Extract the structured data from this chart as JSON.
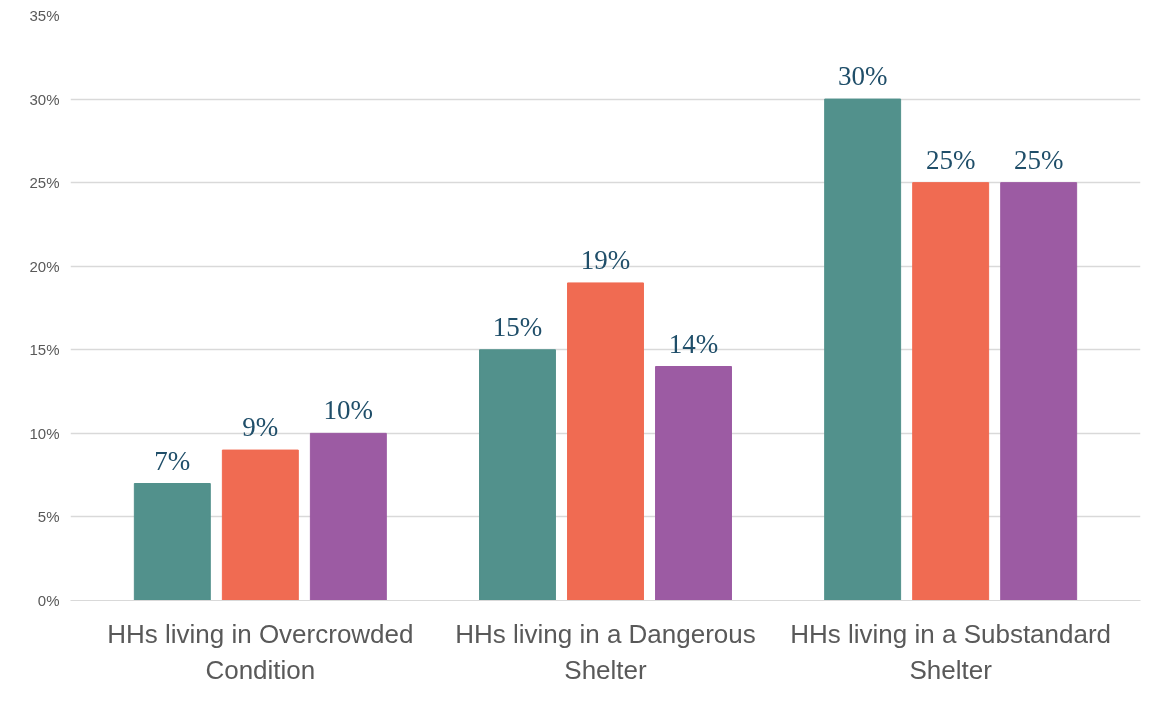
{
  "chart_data": {
    "type": "bar",
    "categories": [
      "HHs living in Overcrowded Condition",
      "HHs living in a Dangerous Shelter",
      "HHs living in a Substandard Shelter"
    ],
    "series": [
      {
        "color": "#52918c",
        "values": [
          7,
          15,
          30
        ],
        "value_labels": [
          "7%",
          "15%",
          "30%"
        ]
      },
      {
        "color": "#f06b52",
        "values": [
          9,
          19,
          25
        ],
        "value_labels": [
          "9%",
          "19%",
          "25%"
        ]
      },
      {
        "color": "#9c5ba3",
        "values": [
          10,
          14,
          25
        ],
        "value_labels": [
          "10%",
          "14%",
          "25%"
        ]
      }
    ],
    "ylim": [
      0,
      35
    ],
    "yticks": [
      {
        "value": 0,
        "label": "0%"
      },
      {
        "value": 5,
        "label": "5%"
      },
      {
        "value": 10,
        "label": "10%"
      },
      {
        "value": 15,
        "label": "15%"
      },
      {
        "value": 20,
        "label": "20%"
      },
      {
        "value": 25,
        "label": "25%"
      },
      {
        "value": 30,
        "label": "30%"
      },
      {
        "value": 35,
        "label": "35%"
      }
    ],
    "grid": "y"
  }
}
